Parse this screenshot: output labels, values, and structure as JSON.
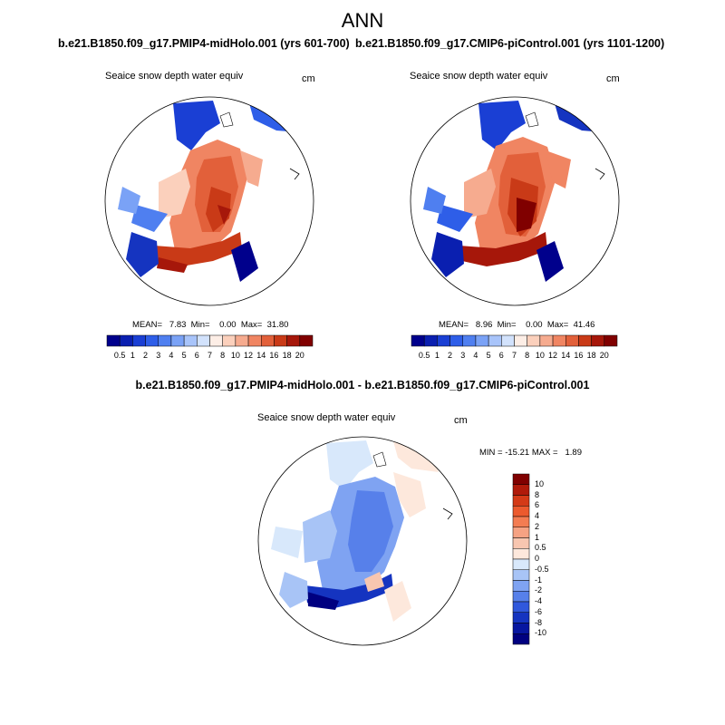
{
  "figure": {
    "title": "ANN",
    "panels": [
      {
        "case": "b.e21.B1850.f09_g17.PMIP4-midHolo.001 (yrs 601-700)",
        "variable": "Seaice snow depth water equiv",
        "units": "cm",
        "stats": "MEAN=   7.83  Min=    0.00  Max=  31.80",
        "colorbar_labels": [
          "0.5",
          "1",
          "2",
          "3",
          "4",
          "5",
          "6",
          "7",
          "8",
          "10",
          "12",
          "14",
          "16",
          "18",
          "20"
        ]
      },
      {
        "case": "b.e21.B1850.f09_g17.CMIP6-piControl.001 (yrs 1101-1200)",
        "variable": "Seaice snow depth water equiv",
        "units": "cm",
        "stats": "MEAN=   8.96  Min=    0.00  Max=  41.46",
        "colorbar_labels": [
          "0.5",
          "1",
          "2",
          "3",
          "4",
          "5",
          "6",
          "7",
          "8",
          "10",
          "12",
          "14",
          "16",
          "18",
          "20"
        ]
      },
      {
        "case": "b.e21.B1850.f09_g17.PMIP4-midHolo.001 - b.e21.B1850.f09_g17.CMIP6-piControl.001",
        "variable": "Seaice snow depth water equiv",
        "units": "cm",
        "stats": "MIN = -15.21 MAX =   1.89",
        "colorbar_labels": [
          "10",
          "8",
          "6",
          "4",
          "2",
          "1",
          "0.5",
          "0",
          "-0.5",
          "-1",
          "-2",
          "-4",
          "-6",
          "-8",
          "-10"
        ]
      }
    ],
    "colors": {
      "abs_scale": [
        "#00008c",
        "#0a1fb0",
        "#1a3fd4",
        "#2e5ee8",
        "#4f7ff0",
        "#7aa2f6",
        "#a8c4fa",
        "#d2e2fc",
        "#fdeee6",
        "#fbd0bc",
        "#f6ab8f",
        "#f08562",
        "#e2603a",
        "#c93a17",
        "#a6170a",
        "#800000"
      ],
      "diff_scale": [
        "#800000",
        "#b01a0a",
        "#d43a17",
        "#ec5a2e",
        "#f47c52",
        "#f6a283",
        "#f8c6b0",
        "#fde8dc",
        "#d8e8fb",
        "#a8c4f6",
        "#7fa3f2",
        "#5780ea",
        "#3058dc",
        "#1534c0",
        "#0716a0",
        "#000080"
      ]
    }
  }
}
